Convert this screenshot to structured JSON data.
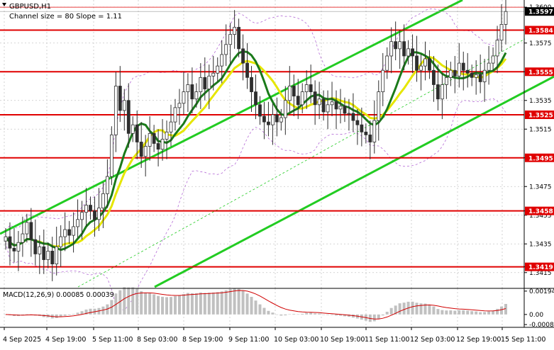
{
  "window": {
    "symbol_title": "GBPUSD,H1",
    "channel_info": "Channel size = 80 Slope = 1.11"
  },
  "colors": {
    "up_candle": "#2e2e2e",
    "down_candle": "#2e2e2e",
    "level_line": "#e00000",
    "level_label_bg": "#e00000",
    "channel": "#22cc22",
    "ma_fast": "#e6e600",
    "ma_slow": "#1a7a1a",
    "envelope": "#b46ad6",
    "grid": "#c8c8c8",
    "price_tag_bg": "#000000",
    "macd_hist": "#c0c0c0",
    "macd_signal": "#d00000"
  },
  "chart_data": {
    "type": "candlestick",
    "symbol": "GBPUSD",
    "timeframe": "H1",
    "y_axis": {
      "range": [
        1.3405,
        1.3605
      ],
      "tick_labels": [
        "1.3600",
        "1.3575",
        "1.3555",
        "1.3535",
        "1.3515",
        "1.3495",
        "1.3475",
        "1.3458",
        "1.3455",
        "1.3435",
        "1.3419",
        "1.3415"
      ]
    },
    "current_price": "1.3597",
    "horizontal_levels": [
      {
        "value": 1.3584,
        "label": "1.3584"
      },
      {
        "value": 1.3555,
        "label": "1.3555"
      },
      {
        "value": 1.3525,
        "label": "1.3525"
      },
      {
        "value": 1.3495,
        "label": "1.3495"
      },
      {
        "value": 1.3458,
        "label": "1.3458"
      },
      {
        "value": 1.3419,
        "label": "1.3419"
      }
    ],
    "x_labels": [
      "4 Sep 2025",
      "4 Sep 19:00",
      "5 Sep 11:00",
      "8 Sep 03:00",
      "8 Sep 19:00",
      "9 Sep 11:00",
      "10 Sep 03:00",
      "10 Sep 19:00",
      "11 Sep 11:00",
      "12 Sep 03:00",
      "12 Sep 19:00",
      "15 Sep 11:00"
    ],
    "closes": [
      1.344,
      1.3432,
      1.343,
      1.3436,
      1.3442,
      1.345,
      1.3438,
      1.3428,
      1.3433,
      1.3424,
      1.343,
      1.3421,
      1.3433,
      1.344,
      1.3445,
      1.3441,
      1.3447,
      1.3452,
      1.3457,
      1.3462,
      1.3458,
      1.3452,
      1.346,
      1.347,
      1.3482,
      1.3511,
      1.3545,
      1.3528,
      1.3535,
      1.3512,
      1.3518,
      1.3506,
      1.3496,
      1.3503,
      1.3512,
      1.3505,
      1.3501,
      1.3508,
      1.3513,
      1.352,
      1.353,
      1.3533,
      1.3541,
      1.3546,
      1.3536,
      1.3541,
      1.3551,
      1.3543,
      1.3552,
      1.3554,
      1.3559,
      1.3567,
      1.3574,
      1.3581,
      1.3586,
      1.3571,
      1.3561,
      1.3551,
      1.3541,
      1.3532,
      1.3524,
      1.352,
      1.3518,
      1.3525,
      1.352,
      1.3523,
      1.3535,
      1.3545,
      1.3538,
      1.3532,
      1.3541,
      1.3546,
      1.3541,
      1.3532,
      1.3536,
      1.3527,
      1.3532,
      1.3534,
      1.3529,
      1.3531,
      1.3526,
      1.3526,
      1.3521,
      1.3518,
      1.3513,
      1.3511,
      1.3506,
      1.3521,
      1.3541,
      1.3556,
      1.3566,
      1.3576,
      1.3571,
      1.3576,
      1.3566,
      1.3571,
      1.3566,
      1.3556,
      1.3559,
      1.3564,
      1.3556,
      1.3546,
      1.3536,
      1.3546,
      1.3551,
      1.3556,
      1.3552,
      1.3561,
      1.3556,
      1.3554,
      1.3551,
      1.3553,
      1.3548,
      1.3556,
      1.3561,
      1.3566,
      1.3577,
      1.3588,
      1.3597
    ],
    "macd": {
      "label": "MACD(12,26,9) 0.00085 0.00039",
      "tick_labels": [
        "0.00194",
        "0.00",
        "-0.00084"
      ],
      "range": [
        -0.00095,
        0.00205
      ]
    }
  }
}
